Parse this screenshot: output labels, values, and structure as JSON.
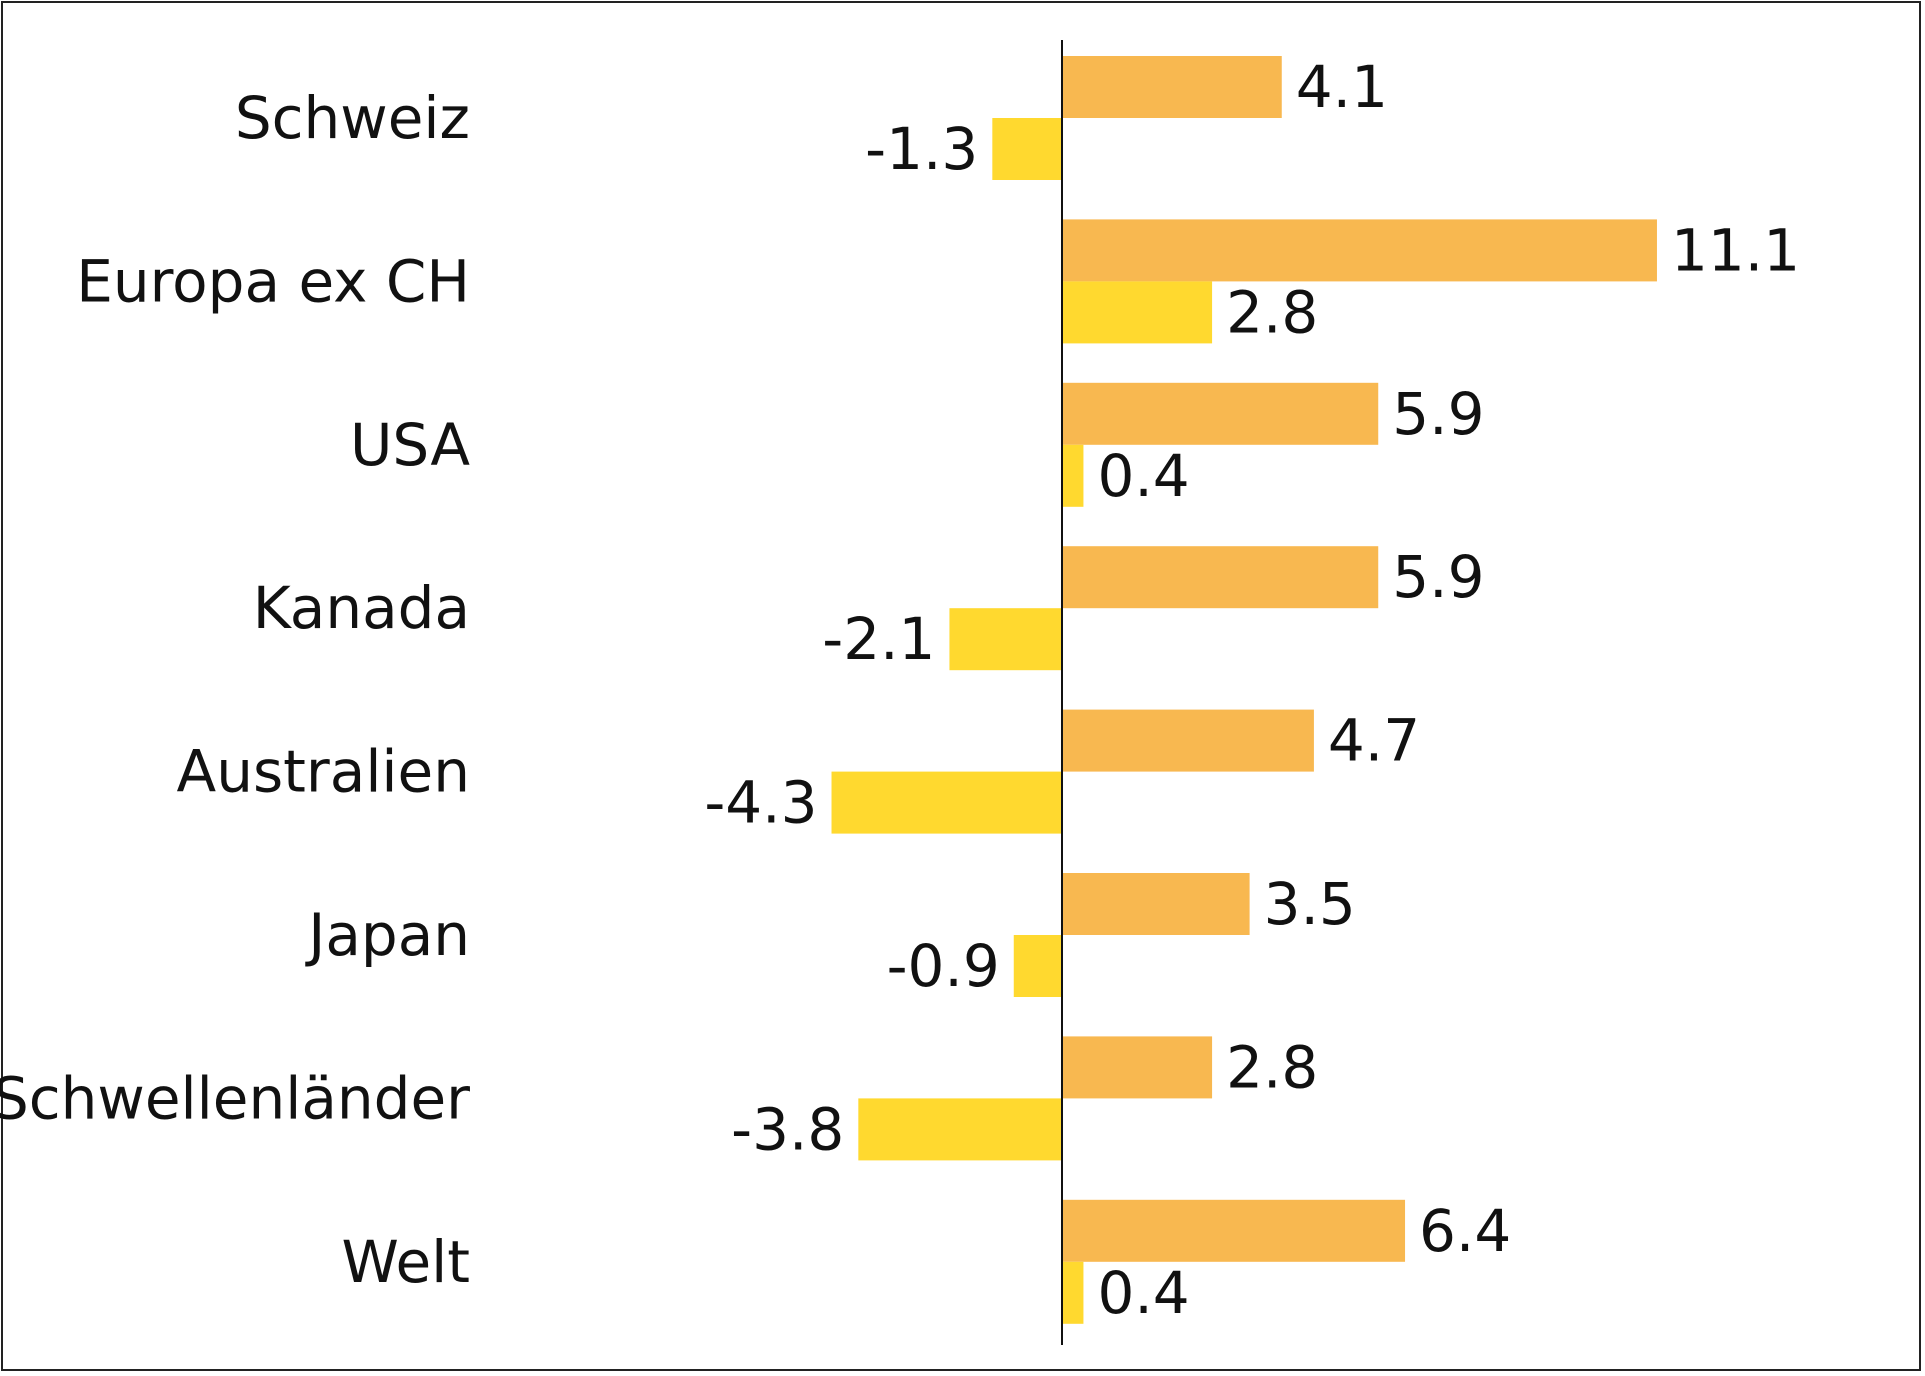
{
  "chart_data": {
    "type": "bar",
    "orientation": "horizontal",
    "title": "",
    "xlabel": "",
    "ylabel": "",
    "categories": [
      "Schweiz",
      "Europa ex CH",
      "USA",
      "Kanada",
      "Australien",
      "Japan",
      "Schwellenländer",
      "Welt"
    ],
    "series": [
      {
        "values": [
          4.1,
          11.1,
          5.9,
          5.9,
          4.7,
          3.5,
          2.8,
          6.4
        ],
        "color": "#F8B850"
      },
      {
        "values": [
          -1.3,
          2.8,
          0.4,
          -2.1,
          -4.3,
          -0.9,
          -3.8,
          0.4
        ],
        "color": "#FFD92F"
      }
    ],
    "data_labels": true,
    "legend": "none",
    "grid": false
  }
}
